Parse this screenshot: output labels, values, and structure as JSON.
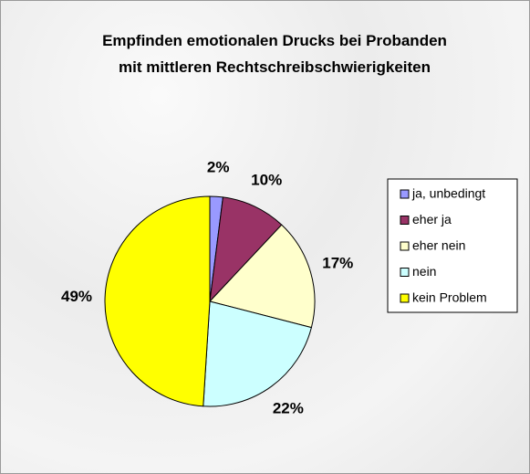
{
  "chart_data": {
    "type": "pie",
    "title": "Empfinden emotionalen Drucks bei Probanden mit mittleren Rechtschreibschwierigkeiten",
    "categories": [
      "ja, unbedingt",
      "eher ja",
      "eher nein",
      "nein",
      "kein Problem"
    ],
    "values": [
      2,
      10,
      17,
      22,
      49
    ],
    "value_labels": [
      "2%",
      "10%",
      "17%",
      "22%",
      "49%"
    ],
    "colors": [
      "#9999ff",
      "#993366",
      "#ffffcc",
      "#ccffff",
      "#ffff00"
    ],
    "legend": "right"
  }
}
